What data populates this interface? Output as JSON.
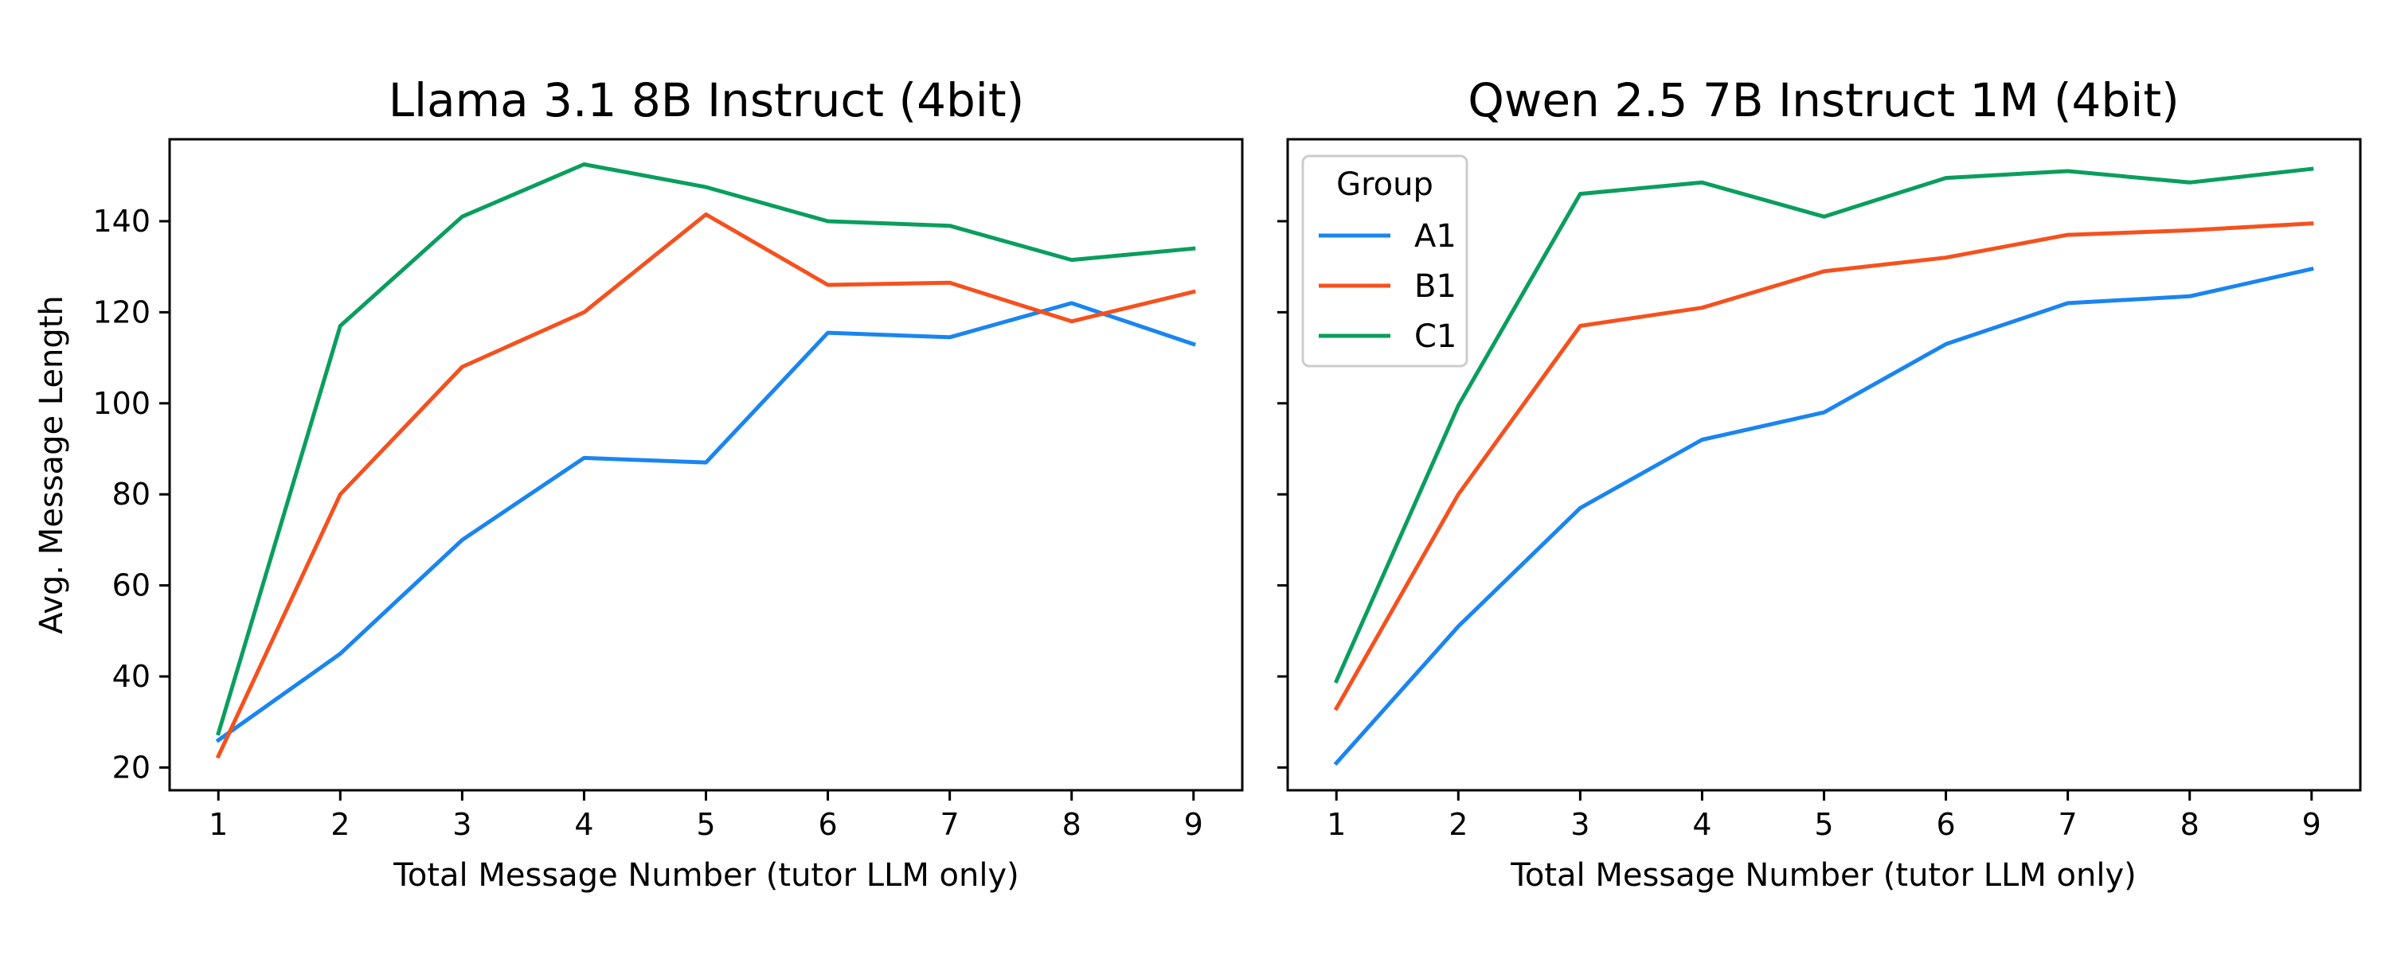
{
  "chart_data": [
    {
      "type": "line",
      "title": "Llama 3.1 8B Instruct (4bit)",
      "xlabel": "Total Message Number (tutor LLM only)",
      "ylabel": "Avg. Message Length",
      "x": [
        1,
        2,
        3,
        4,
        5,
        6,
        7,
        8,
        9
      ],
      "xlim": [
        0.6,
        9.4
      ],
      "ylim": [
        15,
        158
      ],
      "yticks": [
        20,
        40,
        60,
        80,
        100,
        120,
        140
      ],
      "grid": false,
      "series": [
        {
          "name": "A1",
          "color": "#1a85f0",
          "values": [
            26,
            45,
            70,
            88,
            87,
            115.5,
            114.5,
            122,
            113
          ]
        },
        {
          "name": "B1",
          "color": "#f5511e",
          "values": [
            22.5,
            80,
            108,
            120,
            141.5,
            126,
            126.5,
            118,
            124.5
          ]
        },
        {
          "name": "C1",
          "color": "#0a9e5e",
          "values": [
            27.5,
            117,
            141,
            152.5,
            147.5,
            140,
            139,
            131.5,
            134
          ]
        }
      ]
    },
    {
      "type": "line",
      "title": "Qwen 2.5 7B Instruct 1M (4bit)",
      "xlabel": "Total Message Number (tutor LLM only)",
      "ylabel": "",
      "x": [
        1,
        2,
        3,
        4,
        5,
        6,
        7,
        8,
        9
      ],
      "xlim": [
        0.6,
        9.4
      ],
      "ylim": [
        15,
        158
      ],
      "yticks": [
        20,
        40,
        60,
        80,
        100,
        120,
        140
      ],
      "grid": false,
      "legend": {
        "title": "Group",
        "placement": "upper-left"
      },
      "series": [
        {
          "name": "A1",
          "color": "#1a85f0",
          "values": [
            21,
            51,
            77,
            92,
            98,
            113,
            122,
            123.5,
            129.5
          ]
        },
        {
          "name": "B1",
          "color": "#f5511e",
          "values": [
            33,
            80,
            117,
            121,
            129,
            132,
            137,
            138,
            139.5
          ]
        },
        {
          "name": "C1",
          "color": "#0a9e5e",
          "values": [
            39,
            99.5,
            146,
            148.5,
            141,
            149.5,
            151,
            148.5,
            151.5
          ]
        }
      ]
    }
  ]
}
